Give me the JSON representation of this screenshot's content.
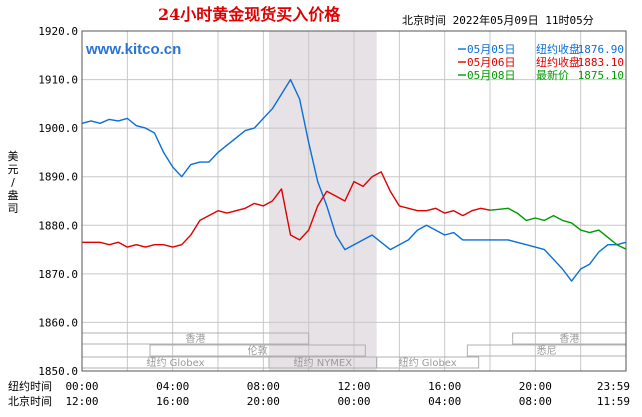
{
  "chart_data": {
    "type": "line",
    "title": "24小时黄金现货买入价格",
    "header_right": "北京时间  2022年05月09日 11时05分",
    "site": "www.kitco.cn",
    "ylabel": [
      "美",
      "元",
      "/",
      "盎",
      "司"
    ],
    "ylim": [
      1850,
      1920
    ],
    "yticks": [
      "1920.0",
      "1910.0",
      "1900.0",
      "1890.0",
      "1880.0",
      "1870.0",
      "1860.0",
      "1850.0"
    ],
    "x_hours_range": [
      0,
      24
    ],
    "xaxis_rows": [
      {
        "label": "纽约时间",
        "ticks": [
          "00:00",
          "04:00",
          "08:00",
          "12:00",
          "16:00",
          "20:00",
          "23:59"
        ]
      },
      {
        "label": "北京时间",
        "ticks": [
          "12:00",
          "16:00",
          "20:00",
          "00:00",
          "04:00",
          "08:00",
          "11:59"
        ]
      }
    ],
    "shaded_region": [
      8.25,
      13.0
    ],
    "sessions": [
      {
        "label": "香港",
        "row": 1,
        "from": 0,
        "to": 10
      },
      {
        "label": "香港",
        "row": 1,
        "from": 19,
        "to": 24
      },
      {
        "label": "伦敦",
        "row": 2,
        "from": 3,
        "to": 12.5
      },
      {
        "label": "悉尼",
        "row": 2,
        "from": 17,
        "to": 24
      },
      {
        "label": "纽约 Globex",
        "row": 3,
        "from": 0,
        "to": 8.25
      },
      {
        "label": "纽约 NYMEX",
        "row": 3,
        "from": 8.25,
        "to": 13
      },
      {
        "label": "纽约 Globex",
        "row": 3,
        "from": 13,
        "to": 17.5
      }
    ],
    "series": [
      {
        "name": "05月05日",
        "legend_label": "纽约收盘",
        "legend_value": "1876.90",
        "color": "#0a6fd8",
        "x": [
          0,
          0.4,
          0.8,
          1.2,
          1.6,
          2,
          2.4,
          2.8,
          3.2,
          3.6,
          4,
          4.4,
          4.8,
          5.2,
          5.6,
          6,
          6.4,
          6.8,
          7.2,
          7.6,
          8,
          8.4,
          8.8,
          9.2,
          9.6,
          10,
          10.4,
          10.8,
          11.2,
          11.6,
          12,
          12.4,
          12.8,
          13.2,
          13.6,
          14,
          14.4,
          14.8,
          15.2,
          15.6,
          16,
          16.4,
          16.8,
          17.2,
          17.6,
          18,
          18.4,
          18.8,
          19.2,
          19.6,
          20,
          20.4,
          20.8,
          21.2,
          21.6,
          22,
          22.4,
          22.8,
          23.2,
          23.6,
          24
        ],
        "y": [
          1901,
          1901.5,
          1901,
          1901.8,
          1901.5,
          1902,
          1900.5,
          1900,
          1899,
          1895,
          1892,
          1890,
          1892.5,
          1893,
          1893,
          1895,
          1896.5,
          1898,
          1899.5,
          1900,
          1902,
          1904,
          1907,
          1910,
          1906,
          1897,
          1889,
          1884,
          1878,
          1875,
          1876,
          1877,
          1878,
          1876.5,
          1875,
          1876,
          1877,
          1879,
          1880,
          1879,
          1878,
          1878.5,
          1877,
          1877,
          1877,
          1877,
          1877,
          1877,
          1876.5,
          1876,
          1875.5,
          1875,
          1873,
          1871,
          1868.5,
          1871,
          1872,
          1874.5,
          1876,
          1876,
          1876.5
        ]
      },
      {
        "name": "05月06日",
        "legend_label": "纽约收盘",
        "legend_value": "1883.10",
        "color": "#e00000",
        "x": [
          0,
          0.4,
          0.8,
          1.2,
          1.6,
          2,
          2.4,
          2.8,
          3.2,
          3.6,
          4,
          4.4,
          4.8,
          5.2,
          5.6,
          6,
          6.4,
          6.8,
          7.2,
          7.6,
          8,
          8.4,
          8.8,
          9.2,
          9.6,
          10,
          10.4,
          10.8,
          11.2,
          11.6,
          12,
          12.4,
          12.8,
          13.2,
          13.6,
          14,
          14.4,
          14.8,
          15.2,
          15.6,
          16,
          16.4,
          16.8,
          17.2,
          17.6,
          18
        ],
        "y": [
          1876.5,
          1876.5,
          1876.5,
          1876,
          1876.5,
          1875.5,
          1876,
          1875.5,
          1876,
          1876,
          1875.5,
          1876,
          1878,
          1881,
          1882,
          1883,
          1882.5,
          1883,
          1883.5,
          1884.5,
          1884,
          1885,
          1887.5,
          1878,
          1877,
          1879,
          1884,
          1887,
          1886,
          1885,
          1889,
          1888,
          1890,
          1891,
          1887,
          1884,
          1883.5,
          1883,
          1883,
          1883.5,
          1882.5,
          1883,
          1882,
          1883,
          1883.5,
          1883.1
        ]
      },
      {
        "name": "05月08日",
        "legend_label": "最新价",
        "legend_value": "1875.10",
        "color": "#009a00",
        "x": [
          18,
          18.4,
          18.8,
          19.2,
          19.6,
          20,
          20.4,
          20.8,
          21.2,
          21.6,
          22,
          22.4,
          22.8,
          23.2,
          23.6,
          24
        ],
        "y": [
          1883.1,
          1883.3,
          1883.5,
          1882.5,
          1881,
          1881.5,
          1881,
          1882,
          1881,
          1880.5,
          1879,
          1878.5,
          1879,
          1877.5,
          1876,
          1875.1
        ]
      }
    ]
  }
}
